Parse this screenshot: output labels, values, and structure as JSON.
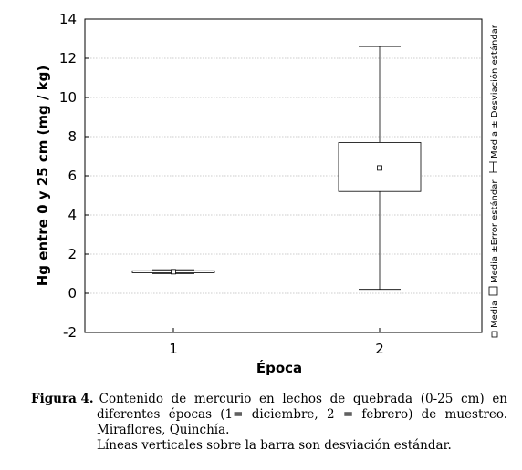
{
  "chart_data": {
    "type": "box",
    "ylabel": "Hg entre 0 y 25 cm (mg / kg)",
    "xlabel": "Época",
    "ylim": [
      -2,
      14
    ],
    "yticks": [
      -2,
      0,
      2,
      4,
      6,
      8,
      10,
      12,
      14
    ],
    "categories": [
      "1",
      "2"
    ],
    "grid": true,
    "legend_position": "right (vertical)",
    "legend": {
      "mean": "Media",
      "se": "Media ±Error estándar",
      "sd": "Media ± Desviación estándar"
    },
    "boxes": [
      {
        "category": "1",
        "mean": 1.1,
        "se_low": 1.05,
        "se_high": 1.15,
        "sd_low": 1.0,
        "sd_high": 1.2
      },
      {
        "category": "2",
        "mean": 6.4,
        "se_low": 5.2,
        "se_high": 7.7,
        "sd_low": 0.2,
        "sd_high": 12.6
      }
    ]
  },
  "caption": {
    "label": "Figura 4.",
    "line1": "Contenido de mercurio en lechos de quebrada (0-25 cm) en",
    "line2": "diferentes épocas (1= diciembre, 2 = febrero) de muestreo.",
    "line3": "Miraflores, Quinchía.",
    "line4": "Líneas verticales sobre la barra son desviación estándar."
  }
}
